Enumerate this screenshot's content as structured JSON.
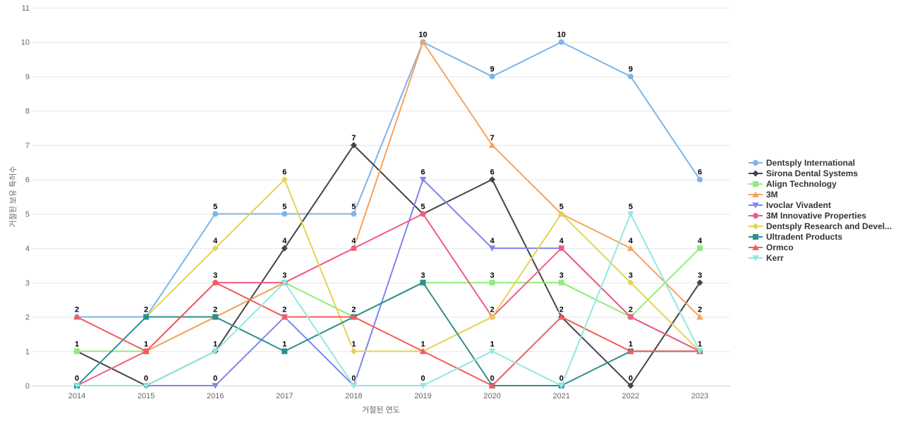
{
  "axes": {
    "y_title": "거절된 보유 특허수",
    "x_title": "거절된 연도"
  },
  "chart_data": {
    "type": "line",
    "title": "",
    "xlabel": "거절된 연도",
    "ylabel": "거절된 보유 특허수",
    "x": [
      2014,
      2015,
      2016,
      2017,
      2018,
      2019,
      2020,
      2021,
      2022,
      2023
    ],
    "y_ticks": [
      0,
      1,
      2,
      3,
      4,
      5,
      6,
      7,
      8,
      9,
      10,
      11
    ],
    "ylim": [
      0,
      11
    ],
    "grid": true,
    "legend_position": "right",
    "grid_color": "#e6e6e6",
    "axis_line_color": "#ccd6eb",
    "series": [
      {
        "name": "Dentsply International",
        "color": "#7cb5ec",
        "marker": "circle",
        "values": [
          2,
          2,
          5,
          5,
          5,
          10,
          9,
          10,
          9,
          6
        ]
      },
      {
        "name": "Sirona Dental Systems",
        "color": "#434348",
        "marker": "diamond",
        "values": [
          1,
          0,
          1,
          4,
          7,
          5,
          6,
          2,
          0,
          3
        ]
      },
      {
        "name": "Align Technology",
        "color": "#90ed7d",
        "marker": "square",
        "values": [
          1,
          1,
          2,
          3,
          2,
          3,
          3,
          3,
          2,
          4
        ]
      },
      {
        "name": "3M",
        "color": "#f7a35c",
        "marker": "triangle",
        "values": [
          null,
          1,
          2,
          3,
          4,
          10,
          7,
          5,
          4,
          2
        ]
      },
      {
        "name": "Ivoclar Vivadent",
        "color": "#8085e9",
        "marker": "triangle-down",
        "values": [
          null,
          0,
          0,
          2,
          0,
          6,
          4,
          4,
          2,
          1
        ]
      },
      {
        "name": "3M Innovative Properties",
        "color": "#f15c80",
        "marker": "circle",
        "values": [
          0,
          1,
          3,
          3,
          4,
          5,
          2,
          4,
          2,
          1
        ]
      },
      {
        "name": "Dentsply Research and Devel...",
        "color": "#e4d354",
        "marker": "diamond",
        "values": [
          null,
          2,
          4,
          6,
          1,
          1,
          2,
          5,
          3,
          1
        ]
      },
      {
        "name": "Ultradent Products",
        "color": "#2b908f",
        "marker": "square",
        "values": [
          0,
          2,
          2,
          1,
          2,
          3,
          0,
          0,
          1,
          1
        ]
      },
      {
        "name": "Ormco",
        "color": "#f45b5b",
        "marker": "triangle",
        "values": [
          2,
          1,
          3,
          2,
          2,
          1,
          0,
          2,
          1,
          1
        ]
      },
      {
        "name": "Kerr",
        "color": "#91e8e1",
        "marker": "triangle-down",
        "values": [
          0,
          0,
          1,
          3,
          0,
          0,
          1,
          0,
          5,
          1
        ]
      }
    ]
  }
}
